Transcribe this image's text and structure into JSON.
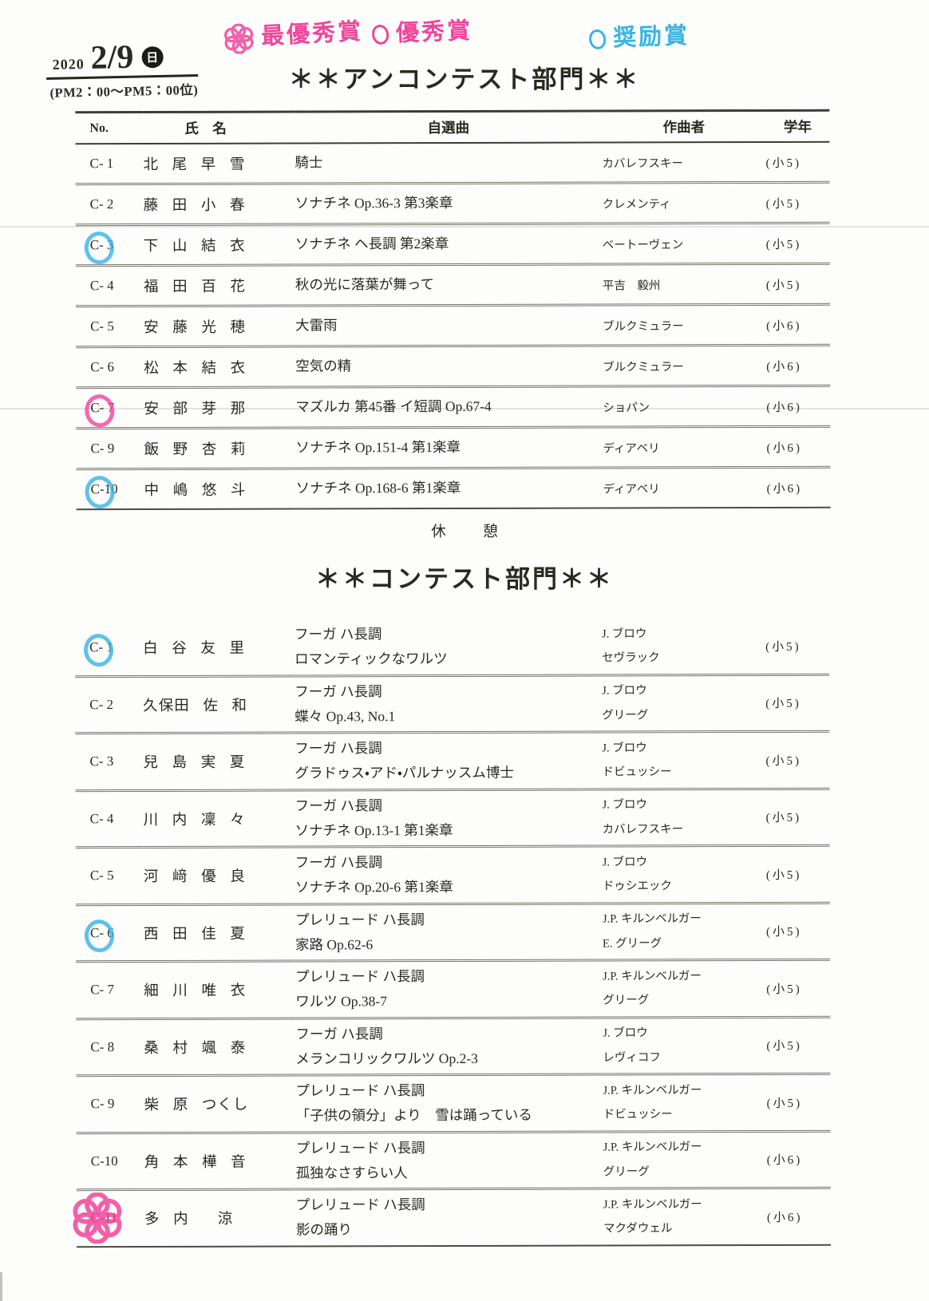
{
  "colors": {
    "pink": "#f0459b",
    "blue": "#38b4e4",
    "ink": "#2a2a22"
  },
  "document": {
    "date_block": {
      "year": "2020",
      "date": "2/9",
      "day": "日",
      "time": "(PM2：00～PM5：00位)"
    },
    "legend": {
      "items": [
        {
          "symbol": "flower",
          "label": "最優秀賞",
          "color": "#f0459b"
        },
        {
          "symbol": "circle",
          "label": "優秀賞",
          "color": "#f0459b"
        },
        {
          "symbol": "circle",
          "label": "奨励賞",
          "color": "#38b4e4"
        }
      ]
    },
    "break_label": "休　憩",
    "sections": [
      {
        "title": "＊＊アンコンテスト部門＊＊",
        "columns": [
          "No.",
          "氏　名",
          "自選曲",
          "作曲者",
          "学年"
        ],
        "rows": [
          {
            "no": "C- 1",
            "name": "北 尾 早 雪",
            "piece": [
              "騎士"
            ],
            "composer": [
              "カバレフスキー"
            ],
            "grade": "(小5)",
            "mark": null
          },
          {
            "no": "C- 2",
            "name": "藤 田 小 春",
            "piece": [
              "ソナチネ Op.36-3 第3楽章"
            ],
            "composer": [
              "クレメンティ"
            ],
            "grade": "(小5)",
            "mark": null
          },
          {
            "no": "C- 3",
            "name": "下 山 結 衣",
            "piece": [
              "ソナチネ ヘ長調 第2楽章"
            ],
            "composer": [
              "ベートーヴェン"
            ],
            "grade": "(小5)",
            "mark": "blue-circle"
          },
          {
            "no": "C- 4",
            "name": "福 田 百 花",
            "piece": [
              "秋の光に落葉が舞って"
            ],
            "composer": [
              "平吉　毅州"
            ],
            "grade": "(小5)",
            "mark": null
          },
          {
            "no": "C- 5",
            "name": "安 藤 光 穂",
            "piece": [
              "大雷雨"
            ],
            "composer": [
              "ブルクミュラー"
            ],
            "grade": "(小6)",
            "mark": null
          },
          {
            "no": "C- 6",
            "name": "松 本 結 衣",
            "piece": [
              "空気の精"
            ],
            "composer": [
              "ブルクミュラー"
            ],
            "grade": "(小6)",
            "mark": null
          },
          {
            "no": "C- 7",
            "name": "安 部 芽 那",
            "piece": [
              "マズルカ 第45番 イ短調 Op.67-4"
            ],
            "composer": [
              "ショパン"
            ],
            "grade": "(小6)",
            "mark": "pink-circle"
          },
          {
            "no": "C- 9",
            "name": "飯 野 杏 莉",
            "piece": [
              "ソナチネ Op.151-4 第1楽章"
            ],
            "composer": [
              "ディアベリ"
            ],
            "grade": "(小6)",
            "mark": null
          },
          {
            "no": "C-10",
            "name": "中 嶋 悠 斗",
            "piece": [
              "ソナチネ Op.168-6 第1楽章"
            ],
            "composer": [
              "ディアベリ"
            ],
            "grade": "(小6)",
            "mark": "blue-circle"
          }
        ]
      },
      {
        "title": "＊＊コンテスト部門＊＊",
        "columns": null,
        "rows": [
          {
            "no": "C- 1",
            "name": "白 谷 友 里",
            "piece": [
              "フーガ ハ長調",
              "ロマンティックなワルツ"
            ],
            "composer": [
              "J. ブロウ",
              "セヴラック"
            ],
            "grade": "(小5)",
            "mark": "blue-circle"
          },
          {
            "no": "C- 2",
            "name": "久保田 佐 和",
            "piece": [
              "フーガ ハ長調",
              "蝶々 Op.43, No.1"
            ],
            "composer": [
              "J. ブロウ",
              "グリーグ"
            ],
            "grade": "(小5)",
            "mark": null
          },
          {
            "no": "C- 3",
            "name": "兒 島 実 夏",
            "piece": [
              "フーガ ハ長調",
              "グラドゥス・アド・パルナッスム博士"
            ],
            "composer": [
              "J. ブロウ",
              "ドビュッシー"
            ],
            "grade": "(小5)",
            "mark": null
          },
          {
            "no": "C- 4",
            "name": "川 内 凜 々",
            "piece": [
              "フーガ ハ長調",
              "ソナチネ Op.13-1 第1楽章"
            ],
            "composer": [
              "J. ブロウ",
              "カバレフスキー"
            ],
            "grade": "(小5)",
            "mark": null
          },
          {
            "no": "C- 5",
            "name": "河 﨑 優 良",
            "piece": [
              "フーガ ハ長調",
              "ソナチネ Op.20-6 第1楽章"
            ],
            "composer": [
              "J. ブロウ",
              "ドゥシエック"
            ],
            "grade": "(小5)",
            "mark": null
          },
          {
            "no": "C- 6",
            "name": "西 田 佳 夏",
            "piece": [
              "プレリュード ハ長調",
              "家路 Op.62-6"
            ],
            "composer": [
              "J.P. キルンベルガー",
              "E. グリーグ"
            ],
            "grade": "(小5)",
            "mark": "blue-circle"
          },
          {
            "no": "C- 7",
            "name": "細 川 唯 衣",
            "piece": [
              "プレリュード ハ長調",
              "ワルツ Op.38-7"
            ],
            "composer": [
              "J.P. キルンベルガー",
              "グリーグ"
            ],
            "grade": "(小5)",
            "mark": null
          },
          {
            "no": "C- 8",
            "name": "桑 村 颯 泰",
            "piece": [
              "フーガ ハ長調",
              "メランコリックワルツ Op.2-3"
            ],
            "composer": [
              "J. ブロウ",
              "レヴィコフ"
            ],
            "grade": "(小5)",
            "mark": null
          },
          {
            "no": "C- 9",
            "name": "柴 原 つくし",
            "piece": [
              "プレリュード ハ長調",
              "「子供の領分」より　雪は踊っている"
            ],
            "composer": [
              "J.P. キルンベルガー",
              "ドビュッシー"
            ],
            "grade": "(小5)",
            "mark": null
          },
          {
            "no": "C-10",
            "name": "角 本 樺 音",
            "piece": [
              "プレリュード ハ長調",
              "孤独なさすらい人"
            ],
            "composer": [
              "J.P. キルンベルガー",
              "グリーグ"
            ],
            "grade": "(小6)",
            "mark": null
          },
          {
            "no": "C-11",
            "name": "多 内　 涼",
            "piece": [
              "プレリュード ハ長調",
              "影の踊り"
            ],
            "composer": [
              "J.P. キルンベルガー",
              "マクダウェル"
            ],
            "grade": "(小6)",
            "mark": "pink-flower"
          }
        ]
      }
    ]
  }
}
